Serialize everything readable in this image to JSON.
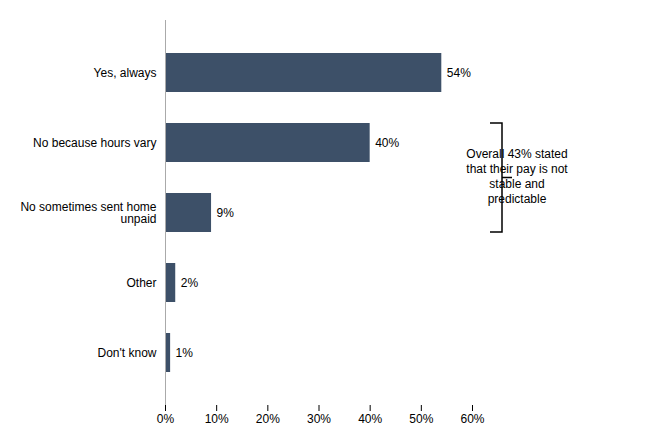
{
  "chart_data": {
    "type": "bar",
    "orientation": "horizontal",
    "categories": [
      "Yes, always",
      "No because hours vary",
      "No sometimes sent home\nunpaid",
      "Other",
      "Don't know"
    ],
    "values": [
      54,
      40,
      9,
      2,
      1
    ],
    "value_labels": [
      "54%",
      "40%",
      "9%",
      "2%",
      "1%"
    ],
    "data_labels": true,
    "color": "#3d5068",
    "xlim": [
      0,
      60
    ],
    "xticks": [
      {
        "value": 0,
        "label": "0%"
      },
      {
        "value": 10,
        "label": "10%"
      },
      {
        "value": 20,
        "label": "20%"
      },
      {
        "value": 30,
        "label": "30%"
      },
      {
        "value": 40,
        "label": "40%"
      },
      {
        "value": 50,
        "label": "50%"
      },
      {
        "value": 60,
        "label": "60%"
      }
    ],
    "grid": false,
    "annotations": [
      {
        "text": "Overall 43% stated\nthat their pay is not\nstable and\npredictable",
        "categories": [
          "No because hours vary",
          "No sometimes sent home\nunpaid"
        ]
      }
    ]
  }
}
